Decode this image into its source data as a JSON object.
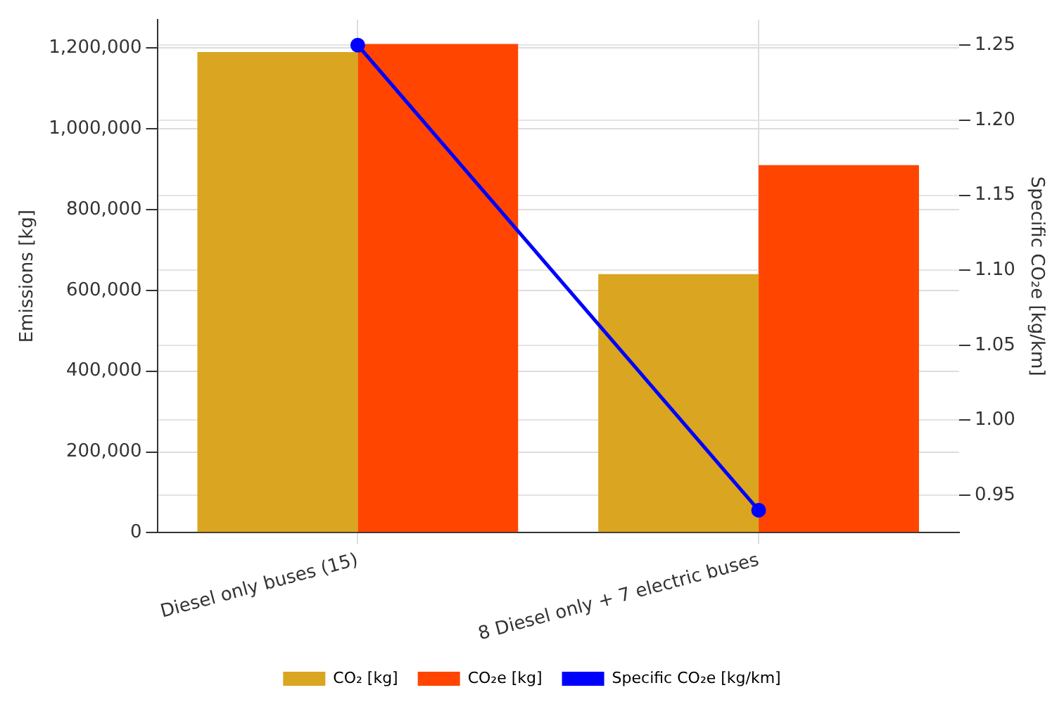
{
  "chart_data": {
    "type": "bar",
    "ylabel": "Emissions [kg]",
    "y2label": "Specific CO₂e [kg/km]",
    "categories": [
      "Diesel only buses (15)",
      "8 Diesel only + 7 electric buses"
    ],
    "series": [
      {
        "name": "CO₂ [kg]",
        "color": "#daa520",
        "values": [
          1190000,
          640000
        ]
      },
      {
        "name": "CO₂e [kg]",
        "color": "#ff4500",
        "values": [
          1210000,
          910000
        ]
      },
      {
        "name": "Specific CO₂e [kg/km]",
        "type": "line",
        "axis": "y2",
        "color": "#0000ff",
        "values": [
          1.25,
          0.94
        ]
      }
    ],
    "ylim": [
      0,
      1270000
    ],
    "yticks": [
      0,
      {
        "value": 200000,
        "label": "200,000"
      },
      {
        "value": 400000,
        "label": "400,000"
      },
      {
        "value": 600000,
        "label": "600,000"
      },
      {
        "value": 800000,
        "label": "800,000"
      },
      {
        "value": 1000000,
        "label": "1,000,000"
      },
      {
        "value": 1200000,
        "label": "1,200,000"
      }
    ],
    "y2lim": [
      0.925,
      1.267
    ],
    "y2ticks": [
      0.95,
      {
        "value": 1.0,
        "label": "1.00"
      },
      1.05,
      {
        "value": 1.1,
        "label": "1.10"
      },
      1.15,
      {
        "value": 1.2,
        "label": "1.20"
      },
      1.25
    ],
    "grid": true,
    "legend": "bottom",
    "marker": "circle",
    "line_style": "solid"
  }
}
